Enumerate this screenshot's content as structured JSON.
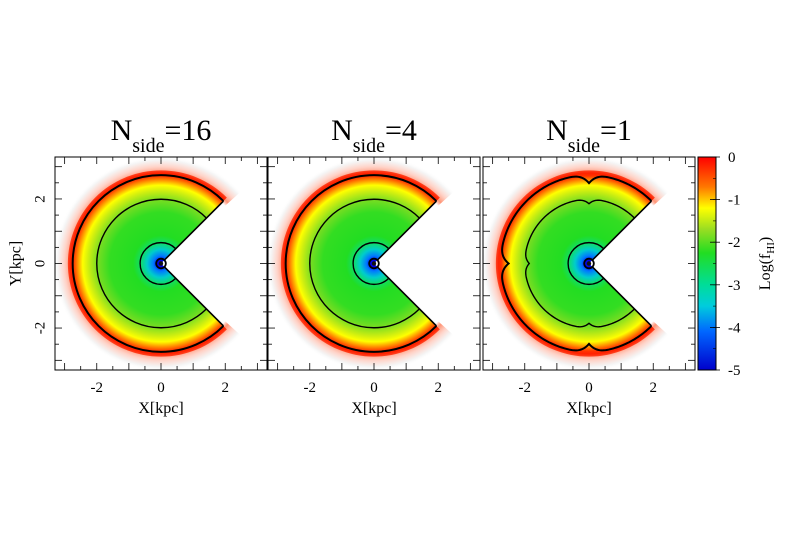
{
  "chart_data": [
    {
      "type": "heatmap",
      "panel_title": {
        "main": "N",
        "sub": "side",
        "suffix": "=16"
      },
      "xlabel": "X[kpc]",
      "ylabel": "Y[kpc]",
      "xlim": [
        -3.3,
        3.3
      ],
      "ylim": [
        -3.3,
        3.3
      ],
      "xticks": [
        "-2",
        "0",
        "2"
      ],
      "yticks": [
        "2",
        "0",
        "-2"
      ],
      "xtick_values": [
        -2,
        0,
        2
      ],
      "ytick_values": [
        2,
        0,
        -2
      ],
      "contour_radii_kpc": [
        0.15,
        0.65,
        2.0,
        2.75
      ],
      "wedge_opening_deg": 90,
      "wedge_direction": "+x",
      "ray_artifacts": false
    },
    {
      "type": "heatmap",
      "panel_title": {
        "main": "N",
        "sub": "side",
        "suffix": "=4"
      },
      "xlabel": "X[kpc]",
      "xlim": [
        -3.3,
        3.3
      ],
      "ylim": [
        -3.3,
        3.3
      ],
      "xticks": [
        "-2",
        "0",
        "2"
      ],
      "xtick_values": [
        -2,
        0,
        2
      ],
      "contour_radii_kpc": [
        0.15,
        0.65,
        2.0,
        2.75
      ],
      "wedge_opening_deg": 90,
      "wedge_direction": "+x",
      "ray_artifacts": false
    },
    {
      "type": "heatmap",
      "panel_title": {
        "main": "N",
        "sub": "side",
        "suffix": "=1"
      },
      "xlabel": "X[kpc]",
      "xlim": [
        -3.3,
        3.3
      ],
      "ylim": [
        -3.3,
        3.3
      ],
      "xticks": [
        "-2",
        "0",
        "2"
      ],
      "xtick_values": [
        -2,
        0,
        2
      ],
      "contour_radii_kpc": [
        0.15,
        0.65,
        2.0,
        2.75
      ],
      "wedge_opening_deg": 90,
      "wedge_direction": "+x",
      "ray_artifacts": true
    }
  ],
  "colorbar": {
    "label_main": "Log(f",
    "label_sub": "HI",
    "label_close": ")",
    "range": [
      -5,
      0
    ],
    "ticks": [
      "0",
      "-1",
      "-2",
      "-3",
      "-4",
      "-5"
    ],
    "tick_values": [
      0,
      -1,
      -2,
      -3,
      -4,
      -5
    ],
    "colors": [
      "#ff0000",
      "#ff8800",
      "#ffff00",
      "#99dd22",
      "#22dd22",
      "#00dddd",
      "#0055ff",
      "#0000cc"
    ]
  }
}
